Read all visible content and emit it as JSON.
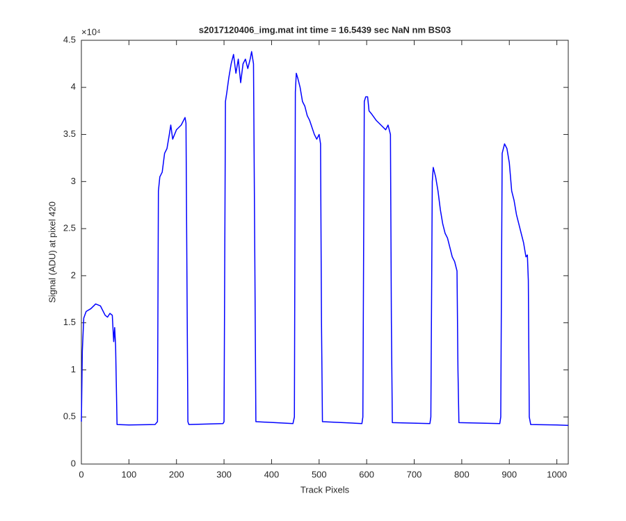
{
  "chart_data": {
    "type": "line",
    "title": "s2017120406_img.mat int time = 16.5439 sec  NaN nm BS03",
    "x_label": "Track Pixels",
    "y_label": "Signal (ADU) at pixel 420",
    "y_exponent_label": "×10⁴",
    "xlim": [
      0,
      1024
    ],
    "ylim": [
      0,
      4.5
    ],
    "xticks": [
      0,
      100,
      200,
      300,
      400,
      500,
      600,
      700,
      800,
      900,
      1000
    ],
    "yticks": [
      0,
      0.5,
      1,
      1.5,
      2,
      2.5,
      3,
      3.5,
      4,
      4.5
    ],
    "grid": false,
    "series": [
      {
        "color": "#0000ff",
        "x": [
          0,
          2,
          5,
          10,
          20,
          30,
          40,
          50,
          55,
          60,
          65,
          68,
          70,
          72,
          75,
          100,
          155,
          160,
          162,
          165,
          170,
          175,
          180,
          185,
          188,
          192,
          200,
          210,
          215,
          218,
          220,
          222,
          224,
          226,
          298,
          300,
          303,
          306,
          310,
          315,
          320,
          325,
          330,
          335,
          340,
          345,
          350,
          355,
          358,
          362,
          365,
          367,
          445,
          448,
          450,
          452,
          455,
          460,
          465,
          470,
          475,
          480,
          490,
          495,
          500,
          503,
          505,
          507,
          590,
          592,
          595,
          598,
          602,
          605,
          610,
          620,
          630,
          640,
          645,
          650,
          652,
          654,
          733,
          735,
          738,
          740,
          745,
          750,
          755,
          760,
          765,
          770,
          775,
          780,
          785,
          790,
          792,
          794,
          880,
          882,
          885,
          890,
          895,
          900,
          905,
          910,
          915,
          920,
          925,
          930,
          935,
          938,
          940,
          942,
          945,
          1000,
          1024
        ],
        "values": [
          0.45,
          1.2,
          1.55,
          1.62,
          1.65,
          1.7,
          1.68,
          1.58,
          1.56,
          1.6,
          1.58,
          1.3,
          1.45,
          1.25,
          0.42,
          0.415,
          0.42,
          0.45,
          2.9,
          3.05,
          3.1,
          3.3,
          3.35,
          3.5,
          3.6,
          3.45,
          3.55,
          3.6,
          3.65,
          3.68,
          3.62,
          2.0,
          0.45,
          0.42,
          0.43,
          0.45,
          3.85,
          3.95,
          4.1,
          4.25,
          4.35,
          4.15,
          4.3,
          4.05,
          4.25,
          4.3,
          4.2,
          4.3,
          4.38,
          4.25,
          2.0,
          0.45,
          0.43,
          0.5,
          3.95,
          4.15,
          4.1,
          4.0,
          3.85,
          3.8,
          3.7,
          3.65,
          3.5,
          3.45,
          3.5,
          3.4,
          1.5,
          0.45,
          0.43,
          0.5,
          3.85,
          3.9,
          3.9,
          3.75,
          3.72,
          3.65,
          3.6,
          3.55,
          3.6,
          3.5,
          1.5,
          0.44,
          0.43,
          0.5,
          3.0,
          3.15,
          3.05,
          2.9,
          2.7,
          2.55,
          2.45,
          2.4,
          2.3,
          2.2,
          2.15,
          2.05,
          1.0,
          0.44,
          0.43,
          0.5,
          3.3,
          3.4,
          3.35,
          3.2,
          2.9,
          2.8,
          2.65,
          2.55,
          2.45,
          2.35,
          2.2,
          2.22,
          1.95,
          0.5,
          0.42,
          0.415,
          0.41
        ]
      }
    ]
  }
}
